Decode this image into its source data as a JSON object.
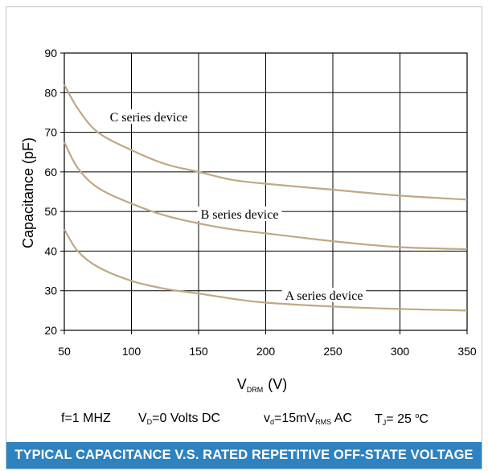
{
  "chart_data": {
    "type": "line",
    "xlim": [
      50,
      350
    ],
    "ylim": [
      20,
      90
    ],
    "x_ticks": [
      "50",
      "100",
      "150",
      "200",
      "250",
      "300",
      "350"
    ],
    "y_ticks": [
      "20",
      "30",
      "40",
      "50",
      "60",
      "70",
      "80",
      "90"
    ],
    "xlabel_main": "V",
    "xlabel_sub": "DRM",
    "xlabel_unit": "(V)",
    "ylabel": "Capacitance (pF)",
    "grid": true,
    "line_color": "#bfa884",
    "series": [
      {
        "name": "A series device",
        "x": [
          50,
          60,
          75,
          100,
          125,
          150,
          175,
          200,
          250,
          300,
          350
        ],
        "y": [
          45.5,
          40,
          36,
          32.5,
          30.5,
          29.3,
          28,
          27,
          26,
          25.4,
          25
        ]
      },
      {
        "name": "B series device",
        "x": [
          50,
          60,
          75,
          100,
          125,
          150,
          175,
          200,
          250,
          300,
          350
        ],
        "y": [
          67.5,
          61,
          56,
          52,
          49,
          47,
          45.5,
          44.5,
          42.5,
          41,
          40.5
        ]
      },
      {
        "name": "C series device",
        "x": [
          50,
          60,
          75,
          100,
          125,
          150,
          175,
          200,
          250,
          300,
          350
        ],
        "y": [
          82,
          76,
          70,
          65.5,
          62,
          60,
          58,
          57,
          55.5,
          54,
          53
        ]
      }
    ]
  },
  "conditions": {
    "f": "f=1 MHZ",
    "vd_main": "V",
    "vd_sub": "D",
    "vd_rest": "=0 Volts DC",
    "vsmall_main": "v",
    "vsmall_sub": "d",
    "vsmall_mid": "=15mV",
    "vsmall_sub2": "RMS",
    "vsmall_rest": " AC",
    "tj_main": "T",
    "tj_sub": "J",
    "tj_mid": "= 25 ",
    "tj_sup": "o",
    "tj_rest": "C"
  },
  "footer": {
    "title": "TYPICAL CAPACITANCE V.S. RATED REPETITIVE OFF-STATE VOLTAGE",
    "color": "#2f82c0"
  }
}
